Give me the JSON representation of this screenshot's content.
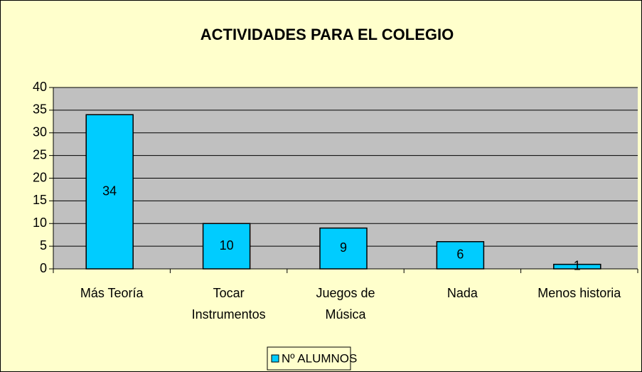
{
  "chart_data": {
    "type": "bar",
    "title": "ACTIVIDADES PARA EL COLEGIO",
    "categories": [
      "Más Teoría",
      "Tocar Instrumentos",
      "Juegos de Música",
      "Nada",
      "Menos historia"
    ],
    "series": [
      {
        "name": "Nº ALUMNOS",
        "color": "#00ccff",
        "values": [
          34,
          10,
          9,
          6,
          1
        ]
      }
    ],
    "ylim": [
      0,
      40
    ],
    "yticks": [
      0,
      5,
      10,
      15,
      20,
      25,
      30,
      35,
      40
    ],
    "grid": true,
    "legend": "bottom"
  }
}
